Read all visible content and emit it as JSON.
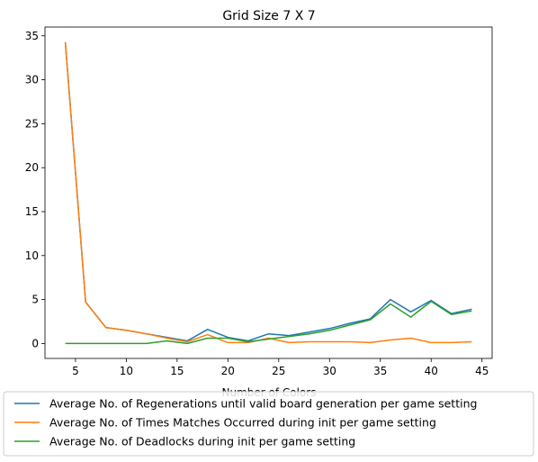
{
  "chart_data": {
    "type": "line",
    "title": "Grid Size 7 X 7",
    "xlabel": "Number of Colors",
    "ylabel": "",
    "xlim": [
      2.0,
      46.0
    ],
    "ylim": [
      -1.7,
      36.0
    ],
    "xticks": [
      5,
      10,
      15,
      20,
      25,
      30,
      35,
      40,
      45
    ],
    "yticks": [
      0,
      5,
      10,
      15,
      20,
      25,
      30,
      35
    ],
    "grid": false,
    "legend_position": "below",
    "x": [
      4,
      6,
      8,
      10,
      12,
      14,
      16,
      18,
      20,
      22,
      24,
      26,
      28,
      30,
      32,
      34,
      36,
      38,
      40,
      42,
      44
    ],
    "series": [
      {
        "name": "Average No. of Regenerations until valid board generation per game setting",
        "color": "#1f77b4",
        "values": [
          34.2,
          4.7,
          1.8,
          1.5,
          1.1,
          0.7,
          0.3,
          1.6,
          0.7,
          0.3,
          1.1,
          0.9,
          1.3,
          1.7,
          2.3,
          2.8,
          5.0,
          3.6,
          4.9,
          3.4,
          3.9
        ]
      },
      {
        "name": "Average No. of Times Matches Occurred during init per game setting",
        "color": "#ff7f0e",
        "values": [
          34.3,
          4.7,
          1.8,
          1.5,
          1.1,
          0.6,
          0.2,
          1.0,
          0.1,
          0.1,
          0.6,
          0.1,
          0.2,
          0.2,
          0.2,
          0.1,
          0.4,
          0.6,
          0.1,
          0.1,
          0.2
        ]
      },
      {
        "name": "Average No. of Deadlocks during init per game setting",
        "color": "#2ca02c",
        "values": [
          0.0,
          0.0,
          0.0,
          0.0,
          0.0,
          0.3,
          0.0,
          0.6,
          0.6,
          0.2,
          0.5,
          0.8,
          1.1,
          1.5,
          2.1,
          2.7,
          4.5,
          3.0,
          4.8,
          3.3,
          3.7
        ]
      }
    ]
  }
}
